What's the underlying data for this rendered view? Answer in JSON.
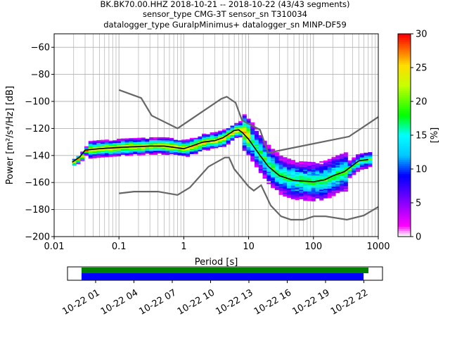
{
  "title": {
    "line1": "BK.BK70.00.HHZ   2018-10-21 -- 2018-10-22  (43/43 segments)",
    "line2": "sensor_type CMG-3T sensor_sn T310034",
    "line3": "datalogger_type GuralpMinimus+ datalogger_sn MINP-DF59"
  },
  "chart_data": {
    "type": "heatmap",
    "xlabel": "Period [s]",
    "ylabel": "Power [m²/s⁴/Hz] [dB]",
    "xscale": "log",
    "xlim": [
      0.01,
      1000
    ],
    "ylim": [
      -200,
      -50
    ],
    "xticks": [
      {
        "v": 0.01,
        "l": "0.01"
      },
      {
        "v": 0.1,
        "l": "0.1"
      },
      {
        "v": 1,
        "l": "1"
      },
      {
        "v": 10,
        "l": "10"
      },
      {
        "v": 100,
        "l": "100"
      },
      {
        "v": 1000,
        "l": "1000"
      }
    ],
    "yticks": [
      -60,
      -80,
      -100,
      -120,
      -140,
      -160,
      -180,
      -200
    ],
    "grid": true,
    "colorbar": {
      "label": "[%]",
      "ticks": [
        0,
        5,
        10,
        15,
        20,
        25,
        30
      ],
      "range": [
        0,
        30
      ]
    },
    "noise_models": [
      {
        "name": "NHNM",
        "color": "#666666",
        "points": [
          [
            0.1,
            -91.5
          ],
          [
            0.22,
            -97.5
          ],
          [
            0.32,
            -110.5
          ],
          [
            0.8,
            -120
          ],
          [
            3.8,
            -98
          ],
          [
            4.6,
            -96.5
          ],
          [
            6.3,
            -101
          ],
          [
            7.9,
            -114
          ],
          [
            15,
            -121
          ],
          [
            20,
            -138
          ],
          [
            354,
            -126
          ],
          [
            1000,
            -111.5
          ]
        ]
      },
      {
        "name": "NLNM",
        "color": "#666666",
        "points": [
          [
            0.1,
            -168
          ],
          [
            0.17,
            -166.7
          ],
          [
            0.4,
            -166.7
          ],
          [
            0.8,
            -169.2
          ],
          [
            1.24,
            -163.7
          ],
          [
            2.4,
            -148.3
          ],
          [
            4.3,
            -141.5
          ],
          [
            5,
            -141.5
          ],
          [
            6,
            -150
          ],
          [
            10,
            -163
          ],
          [
            12,
            -166
          ],
          [
            15.6,
            -162
          ],
          [
            21.9,
            -177
          ],
          [
            31.6,
            -185
          ],
          [
            45,
            -187.5
          ],
          [
            70,
            -187.5
          ],
          [
            101,
            -185
          ],
          [
            154,
            -185
          ],
          [
            328,
            -187.5
          ],
          [
            600,
            -184.4
          ],
          [
            1000,
            -178
          ]
        ]
      }
    ],
    "mean": {
      "color": "#000000",
      "points": [
        [
          0.019,
          -145
        ],
        [
          0.025,
          -141
        ],
        [
          0.03,
          -136
        ],
        [
          0.05,
          -135
        ],
        [
          0.1,
          -134
        ],
        [
          0.3,
          -133
        ],
        [
          0.5,
          -133
        ],
        [
          1,
          -135
        ],
        [
          2,
          -130
        ],
        [
          3,
          -129
        ],
        [
          4,
          -127
        ],
        [
          5,
          -124
        ],
        [
          6,
          -121.5
        ],
        [
          7,
          -121
        ],
        [
          8,
          -123
        ],
        [
          10,
          -128
        ],
        [
          15,
          -140
        ],
        [
          20,
          -148
        ],
        [
          30,
          -155
        ],
        [
          50,
          -158.5
        ],
        [
          100,
          -159.5
        ],
        [
          150,
          -158
        ],
        [
          200,
          -155
        ],
        [
          300,
          -152
        ],
        [
          500,
          -144
        ],
        [
          700,
          -143
        ]
      ]
    },
    "spread_db": 6
  },
  "timeline": {
    "ticks": [
      "10-22 01",
      "10-22 04",
      "10-22 07",
      "10-22 10",
      "10-22 13",
      "10-22 16",
      "10-22 19",
      "10-22 22"
    ],
    "coverage_green_color": "#008000",
    "coverage_blue_color": "#0000ff"
  }
}
